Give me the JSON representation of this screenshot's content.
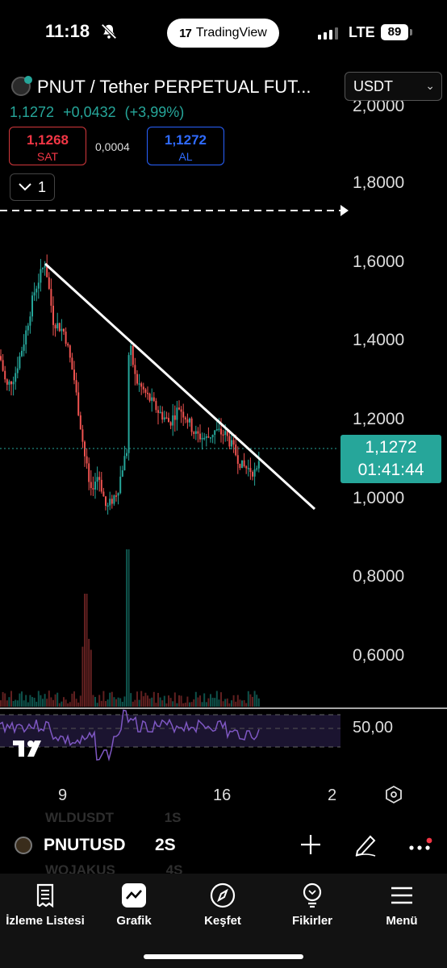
{
  "status_bar": {
    "time": "11:18",
    "center_app": "TradingView",
    "network": "LTE",
    "battery": "89",
    "icons": [
      "bell-off-icon",
      "signal-icon",
      "battery-icon"
    ]
  },
  "header": {
    "title": "PNUT / Tether PERPETUAL FUT...",
    "quote_currency": "USDT",
    "last_price": "1,1272",
    "change_abs": "+0,0432",
    "change_pct": "(+3,99%)",
    "sell": {
      "price": "1,1268",
      "label": "SAT"
    },
    "spread": "0,0004",
    "buy": {
      "price": "1,1272",
      "label": "AL"
    },
    "quantity": "1"
  },
  "chart": {
    "price_axis": [
      "2,0000",
      "1,8000",
      "1,6000",
      "1,4000",
      "1,2000",
      "1,0000",
      "0,8000",
      "0,6000"
    ],
    "current_price_tag": {
      "price": "1,1272",
      "countdown": "01:41:44"
    },
    "rsi_level": "50,00",
    "time_axis": [
      "9",
      "16",
      "2"
    ],
    "colors": {
      "up": "#26a69a",
      "down": "#ef5350",
      "rsi": "#7e57c2",
      "trendline": "#ffffff"
    }
  },
  "toolbar": {
    "symbol": "PNUTUSD",
    "interval": "2S",
    "ghost_rows": [
      {
        "sym": "WLDUSDT",
        "int": "1S"
      },
      {
        "sym": "WOJAKUS",
        "int": "4S"
      }
    ]
  },
  "tabs": [
    {
      "label": "İzleme Listesi",
      "icon": "watchlist-icon"
    },
    {
      "label": "Grafik",
      "icon": "chart-icon"
    },
    {
      "label": "Keşfet",
      "icon": "compass-icon"
    },
    {
      "label": "Fikirler",
      "icon": "lightbulb-icon"
    },
    {
      "label": "Menü",
      "icon": "menu-icon"
    }
  ]
}
